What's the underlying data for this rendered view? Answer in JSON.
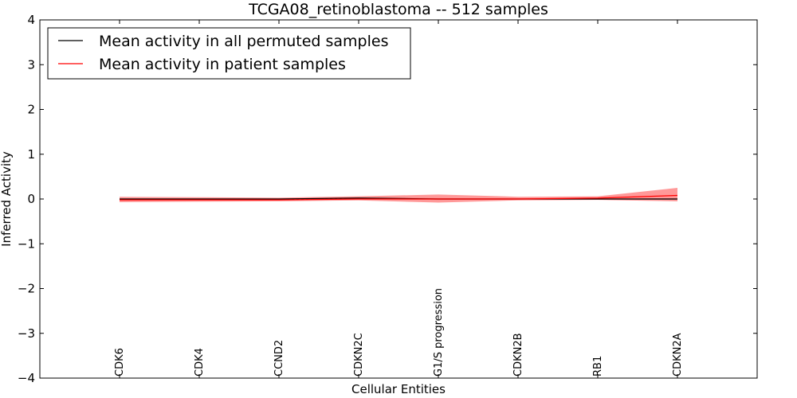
{
  "chart_data": {
    "type": "line",
    "title": "TCGA08_retinoblastoma -- 512 samples",
    "xlabel": "Cellular Entities",
    "ylabel": "Inferred Activity",
    "ylim": [
      -4,
      4
    ],
    "yticks": [
      4,
      3,
      2,
      1,
      0,
      -1,
      -2,
      -3,
      -4
    ],
    "ytick_labels": [
      "4",
      "3",
      "2",
      "1",
      "0",
      "−1",
      "−2",
      "−3",
      "−4"
    ],
    "categories": [
      "CDK6",
      "CDK4",
      "CCND2",
      "CDKN2C",
      "G1/S progression",
      "CDKN2B",
      "RB1",
      "CDKN2A"
    ],
    "series": [
      {
        "name": "Mean activity in all permuted samples",
        "color": "#000000",
        "values": [
          0.0,
          0.0,
          0.0,
          0.02,
          0.0,
          0.0,
          0.0,
          0.0
        ],
        "band_lower": [
          -0.01,
          -0.01,
          -0.01,
          0.0,
          -0.02,
          -0.01,
          -0.01,
          -0.02
        ],
        "band_upper": [
          0.01,
          0.01,
          0.01,
          0.04,
          0.02,
          0.01,
          0.01,
          0.02
        ],
        "band_color": "#aaaaaa",
        "dashed_center": true
      },
      {
        "name": "Mean activity in patient samples",
        "color": "#ff0000",
        "values": [
          -0.02,
          -0.02,
          -0.02,
          0.0,
          0.0,
          0.0,
          0.02,
          0.08
        ],
        "band_lower": [
          -0.07,
          -0.06,
          -0.05,
          -0.03,
          -0.08,
          -0.03,
          -0.02,
          -0.05
        ],
        "band_upper": [
          0.05,
          0.04,
          0.03,
          0.06,
          0.1,
          0.05,
          0.06,
          0.25
        ],
        "band_color": "#ff0000"
      }
    ],
    "legend_position": "top-left",
    "grid": false
  }
}
